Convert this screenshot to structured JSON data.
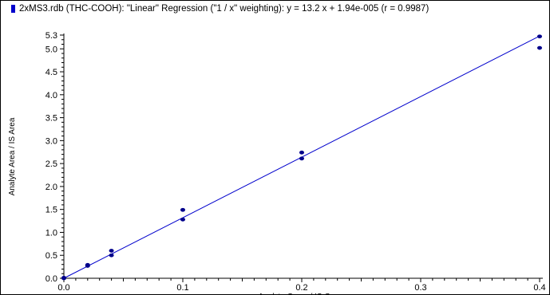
{
  "chart_data": {
    "type": "scatter",
    "title": "2xMS3.rdb (THC-COOH): \"Linear\" Regression (\"1 / x\" weighting): y = 13.2 x + 1.94e-005 (r = 0.9987)",
    "xlabel": "Analyte Conc. / IS Conc.",
    "ylabel": "Analyte Area / IS Area",
    "xlim": [
      0.0,
      0.4
    ],
    "ylim": [
      0.0,
      5.3
    ],
    "x_ticks": [
      "0.0",
      "0.1",
      "0.2",
      "0.3",
      "0.4"
    ],
    "y_ticks": [
      "0.0",
      "0.5",
      "1.0",
      "1.5",
      "2.0",
      "2.5",
      "3.0",
      "3.5",
      "4.0",
      "4.5",
      "5.0",
      "5.3"
    ],
    "grid": false,
    "point_color": "#00008b",
    "line_color": "#0000cc",
    "series": [
      {
        "points": [
          {
            "x": 0.0,
            "y": 0.0
          },
          {
            "x": 0.0,
            "y": 0.01
          },
          {
            "x": 0.02,
            "y": 0.27
          },
          {
            "x": 0.02,
            "y": 0.29
          },
          {
            "x": 0.04,
            "y": 0.5
          },
          {
            "x": 0.04,
            "y": 0.6
          },
          {
            "x": 0.1,
            "y": 1.28
          },
          {
            "x": 0.1,
            "y": 1.49
          },
          {
            "x": 0.2,
            "y": 2.61
          },
          {
            "x": 0.2,
            "y": 2.74
          },
          {
            "x": 0.4,
            "y": 5.02
          },
          {
            "x": 0.4,
            "y": 5.27
          }
        ]
      }
    ],
    "regression": {
      "slope": 13.2,
      "intercept": 1.94e-05
    }
  }
}
